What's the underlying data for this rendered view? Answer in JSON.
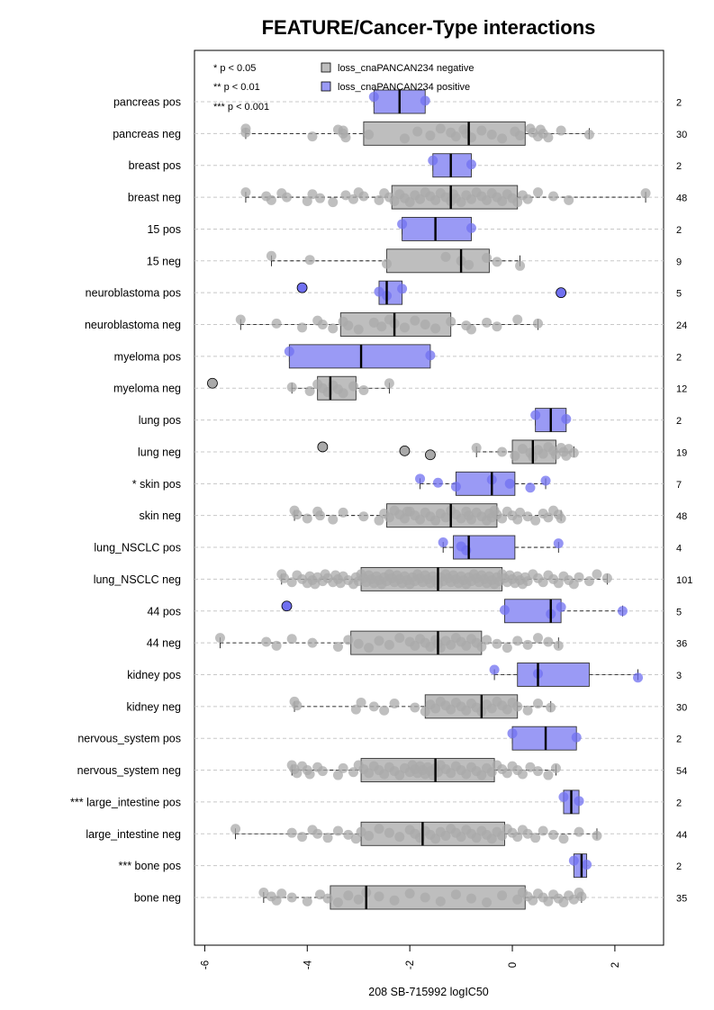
{
  "chart_data": {
    "type": "boxplot",
    "title": "FEATURE/Cancer-Type interactions",
    "xlabel": "208 SB-715992 logIC50",
    "xlim": [
      -6.2,
      2.95
    ],
    "x_ticks": [
      -6,
      -4,
      -2,
      0,
      2
    ],
    "x_tick_labels": [
      "-6",
      "-4",
      "-2",
      "0",
      "2"
    ],
    "significance_legend": [
      "* p < 0.05",
      "** p < 0.01",
      "*** p < 0.001"
    ],
    "series": [
      {
        "name": "loss_cnaPANCAN234 negative",
        "fill": "#bebebe",
        "point": "#a9a9a9"
      },
      {
        "name": "loss_cnaPANCAN234 positive",
        "fill": "#9a9af5",
        "point": "#7070f0"
      }
    ],
    "groups": [
      {
        "label": "pancreas pos",
        "n": "2",
        "series": 1,
        "q1": -2.7,
        "median": -2.2,
        "q3": -1.7,
        "lo": -2.7,
        "hi": -1.7,
        "outliers": [],
        "points": [
          -2.7,
          -1.7
        ]
      },
      {
        "label": "pancreas neg",
        "n": "30",
        "series": 0,
        "q1": -2.9,
        "median": -0.85,
        "q3": 0.25,
        "lo": -5.2,
        "hi": 1.5,
        "outliers": [],
        "points": [
          -5.2,
          -5.2,
          -3.9,
          -3.4,
          -3.3,
          -3.25,
          -3.3,
          -2.8,
          -2.1,
          -1.85,
          -1.6,
          -1.4,
          -1.2,
          -1.1,
          -0.95,
          -0.9,
          -0.8,
          -0.6,
          -0.4,
          -0.2,
          0.05,
          0.15,
          0.35,
          0.4,
          0.5,
          0.55,
          0.6,
          0.7,
          0.95,
          1.5
        ]
      },
      {
        "label": "breast pos",
        "n": "2",
        "series": 1,
        "q1": -1.55,
        "median": -1.2,
        "q3": -0.8,
        "lo": -1.55,
        "hi": -0.8,
        "outliers": [],
        "points": [
          -1.55,
          -0.8
        ]
      },
      {
        "label": "breast neg",
        "n": "48",
        "series": 0,
        "q1": -2.35,
        "median": -1.2,
        "q3": 0.1,
        "lo": -5.2,
        "hi": 2.6,
        "outliers": [],
        "points": [
          -5.2,
          -4.8,
          -4.7,
          -4.5,
          -4.4,
          -4.0,
          -3.9,
          -3.75,
          -3.5,
          -3.25,
          -3.1,
          -3.0,
          -2.9,
          -2.6,
          -2.5,
          -2.4,
          -2.3,
          -2.2,
          -2.1,
          -2.0,
          -1.9,
          -1.8,
          -1.7,
          -1.6,
          -1.5,
          -1.4,
          -1.3,
          -1.2,
          -1.15,
          -1.1,
          -1.0,
          -0.9,
          -0.8,
          -0.7,
          -0.6,
          -0.5,
          -0.4,
          -0.3,
          -0.2,
          -0.1,
          0.0,
          0.1,
          0.2,
          0.3,
          0.5,
          0.8,
          1.1,
          2.6
        ]
      },
      {
        "label": "15 pos",
        "n": "2",
        "series": 1,
        "q1": -2.15,
        "median": -1.5,
        "q3": -0.8,
        "lo": -2.15,
        "hi": -0.8,
        "outliers": [],
        "points": [
          -2.15,
          -0.8
        ]
      },
      {
        "label": "15 neg",
        "n": "9",
        "series": 0,
        "q1": -2.45,
        "median": -1.0,
        "q3": -0.45,
        "lo": -4.7,
        "hi": 0.15,
        "outliers": [],
        "points": [
          -4.7,
          -3.95,
          -2.45,
          -1.3,
          -1.0,
          -0.85,
          -0.5,
          -0.3,
          0.15
        ]
      },
      {
        "label": "neuroblastoma pos",
        "n": "5",
        "series": 1,
        "q1": -2.6,
        "median": -2.45,
        "q3": -2.15,
        "lo": -2.6,
        "hi": -2.15,
        "outliers": [
          -4.1,
          0.95
        ],
        "points": [
          -4.1,
          -2.6,
          -2.45,
          -2.15,
          0.95
        ]
      },
      {
        "label": "neuroblastoma neg",
        "n": "24",
        "series": 0,
        "q1": -3.35,
        "median": -2.3,
        "q3": -1.2,
        "lo": -5.3,
        "hi": 0.5,
        "outliers": [],
        "points": [
          -5.3,
          -4.6,
          -4.1,
          -3.8,
          -3.7,
          -3.5,
          -3.3,
          -3.2,
          -3.0,
          -2.7,
          -2.55,
          -2.4,
          -2.3,
          -2.1,
          -1.9,
          -1.7,
          -1.5,
          -1.2,
          -0.9,
          -0.8,
          -0.5,
          -0.3,
          0.1,
          0.5
        ]
      },
      {
        "label": "myeloma pos",
        "n": "2",
        "series": 1,
        "q1": -4.35,
        "median": -2.95,
        "q3": -1.6,
        "lo": -4.35,
        "hi": -1.6,
        "outliers": [],
        "points": [
          -4.35,
          -1.6
        ]
      },
      {
        "label": "myeloma neg",
        "n": "12",
        "series": 0,
        "q1": -3.8,
        "median": -3.55,
        "q3": -3.05,
        "lo": -4.3,
        "hi": -2.4,
        "outliers": [
          -5.85
        ],
        "points": [
          -5.85,
          -4.3,
          -3.95,
          -3.8,
          -3.7,
          -3.6,
          -3.5,
          -3.4,
          -3.3,
          -3.1,
          -2.9,
          -2.4
        ]
      },
      {
        "label": "lung pos",
        "n": "2",
        "series": 1,
        "q1": 0.45,
        "median": 0.75,
        "q3": 1.05,
        "lo": 0.45,
        "hi": 1.05,
        "outliers": [],
        "points": [
          0.45,
          1.05
        ]
      },
      {
        "label": "lung neg",
        "n": "19",
        "series": 0,
        "q1": 0.0,
        "median": 0.4,
        "q3": 0.85,
        "lo": -0.7,
        "hi": 1.2,
        "outliers": [
          -3.7,
          -2.1,
          -1.6
        ],
        "points": [
          -3.7,
          -2.1,
          -1.6,
          -0.7,
          -0.2,
          0.05,
          0.2,
          0.35,
          0.4,
          0.5,
          0.6,
          0.7,
          0.8,
          0.85,
          0.95,
          1.0,
          1.05,
          1.1,
          1.2
        ]
      },
      {
        "label": "* skin pos",
        "n": "7",
        "series": 1,
        "q1": -1.1,
        "median": -0.4,
        "q3": 0.05,
        "lo": -1.8,
        "hi": 0.65,
        "outliers": [],
        "points": [
          -1.8,
          -1.45,
          -1.1,
          -0.4,
          -0.05,
          0.35,
          0.65
        ]
      },
      {
        "label": "skin neg",
        "n": "48",
        "series": 0,
        "q1": -2.45,
        "median": -1.2,
        "q3": -0.3,
        "lo": -4.25,
        "hi": 0.95,
        "outliers": [],
        "points": [
          -4.25,
          -4.2,
          -4.0,
          -3.8,
          -3.75,
          -3.5,
          -3.3,
          -2.9,
          -2.6,
          -2.5,
          -2.4,
          -2.3,
          -2.2,
          -2.1,
          -2.0,
          -1.9,
          -1.8,
          -1.7,
          -1.6,
          -1.5,
          -1.4,
          -1.3,
          -1.2,
          -1.1,
          -1.0,
          -0.9,
          -0.85,
          -0.8,
          -0.7,
          -0.6,
          -0.5,
          -0.45,
          -0.4,
          -0.35,
          -0.3,
          -0.2,
          -0.1,
          0.0,
          0.1,
          0.15,
          0.3,
          0.45,
          0.6,
          0.7,
          0.8,
          0.9,
          0.95,
          -2.05
        ]
      },
      {
        "label": "lung_NSCLC pos",
        "n": "4",
        "series": 1,
        "q1": -1.15,
        "median": -0.85,
        "q3": 0.05,
        "lo": -1.35,
        "hi": 0.9,
        "outliers": [],
        "points": [
          -1.35,
          -1.0,
          -0.9,
          0.9
        ]
      },
      {
        "label": "lung_NSCLC neg",
        "n": "101",
        "series": 0,
        "q1": -2.95,
        "median": -1.45,
        "q3": -0.2,
        "lo": -4.5,
        "hi": 1.85,
        "outliers": [],
        "points": [
          -4.5,
          -4.45,
          -4.3,
          -4.2,
          -4.1,
          -4.0,
          -3.95,
          -3.9,
          -3.85,
          -3.8,
          -3.7,
          -3.65,
          -3.6,
          -3.5,
          -3.45,
          -3.4,
          -3.35,
          -3.3,
          -3.2,
          -3.1,
          -3.05,
          -3.0,
          -2.95,
          -2.9,
          -2.85,
          -2.8,
          -2.75,
          -2.7,
          -2.65,
          -2.6,
          -2.55,
          -2.5,
          -2.45,
          -2.4,
          -2.35,
          -2.3,
          -2.25,
          -2.2,
          -2.15,
          -2.1,
          -2.05,
          -2.0,
          -1.95,
          -1.9,
          -1.85,
          -1.8,
          -1.75,
          -1.7,
          -1.65,
          -1.6,
          -1.55,
          -1.5,
          -1.45,
          -1.4,
          -1.35,
          -1.3,
          -1.25,
          -1.2,
          -1.15,
          -1.1,
          -1.05,
          -1.0,
          -0.95,
          -0.9,
          -0.85,
          -0.8,
          -0.75,
          -0.7,
          -0.65,
          -0.6,
          -0.55,
          -0.5,
          -0.45,
          -0.4,
          -0.35,
          -0.3,
          -0.25,
          -0.2,
          -0.15,
          -0.1,
          -0.05,
          0.0,
          0.05,
          0.1,
          0.15,
          0.2,
          0.25,
          0.3,
          0.4,
          0.5,
          0.6,
          0.7,
          0.8,
          0.9,
          1.0,
          1.1,
          1.2,
          1.3,
          1.5,
          1.65,
          1.85
        ]
      },
      {
        "label": "44 pos",
        "n": "5",
        "series": 1,
        "q1": -0.15,
        "median": 0.75,
        "q3": 0.95,
        "lo": -0.15,
        "hi": 2.15,
        "outliers": [
          -4.4
        ],
        "points": [
          -4.4,
          -0.15,
          0.75,
          0.95,
          2.15
        ]
      },
      {
        "label": "44 neg",
        "n": "36",
        "series": 0,
        "q1": -3.15,
        "median": -1.45,
        "q3": -0.6,
        "lo": -5.7,
        "hi": 0.9,
        "outliers": [],
        "points": [
          -5.7,
          -4.8,
          -4.6,
          -4.3,
          -3.9,
          -3.4,
          -3.2,
          -3.0,
          -2.8,
          -2.6,
          -2.4,
          -2.2,
          -2.0,
          -1.9,
          -1.8,
          -1.7,
          -1.6,
          -1.5,
          -1.45,
          -1.4,
          -1.3,
          -1.2,
          -1.1,
          -1.0,
          -0.9,
          -0.8,
          -0.7,
          -0.6,
          -0.5,
          -0.3,
          -0.1,
          0.1,
          0.3,
          0.5,
          0.7,
          0.9
        ]
      },
      {
        "label": "kidney pos",
        "n": "3",
        "series": 1,
        "q1": 0.1,
        "median": 0.5,
        "q3": 1.5,
        "lo": -0.35,
        "hi": 2.45,
        "outliers": [],
        "points": [
          -0.35,
          0.5,
          2.45
        ]
      },
      {
        "label": "kidney neg",
        "n": "30",
        "series": 0,
        "q1": -1.7,
        "median": -0.6,
        "q3": 0.1,
        "lo": -4.25,
        "hi": 0.75,
        "outliers": [],
        "points": [
          -4.25,
          -4.2,
          -3.05,
          -2.95,
          -2.7,
          -2.5,
          -2.3,
          -1.9,
          -1.7,
          -1.6,
          -1.5,
          -1.4,
          -1.3,
          -1.2,
          -1.1,
          -1.0,
          -0.9,
          -0.8,
          -0.7,
          -0.6,
          -0.5,
          -0.4,
          -0.3,
          -0.2,
          -0.1,
          0.0,
          0.1,
          0.3,
          0.5,
          0.75
        ]
      },
      {
        "label": "nervous_system pos",
        "n": "2",
        "series": 1,
        "q1": 0.0,
        "median": 0.65,
        "q3": 1.25,
        "lo": 0.0,
        "hi": 1.25,
        "outliers": [],
        "points": [
          0.0,
          1.25
        ]
      },
      {
        "label": "nervous_system neg",
        "n": "54",
        "series": 0,
        "q1": -2.95,
        "median": -1.5,
        "q3": -0.35,
        "lo": -4.3,
        "hi": 0.85,
        "outliers": [],
        "points": [
          -4.3,
          -4.25,
          -4.2,
          -4.1,
          -4.0,
          -3.95,
          -3.8,
          -3.7,
          -3.4,
          -3.3,
          -3.1,
          -3.0,
          -2.9,
          -2.8,
          -2.7,
          -2.6,
          -2.5,
          -2.4,
          -2.3,
          -2.2,
          -2.1,
          -2.0,
          -1.95,
          -1.9,
          -1.85,
          -1.8,
          -1.75,
          -1.7,
          -1.65,
          -1.6,
          -1.55,
          -1.5,
          -1.45,
          -1.4,
          -1.3,
          -1.2,
          -1.1,
          -1.0,
          -0.9,
          -0.8,
          -0.7,
          -0.6,
          -0.5,
          -0.4,
          -0.3,
          -0.2,
          -0.1,
          0.0,
          0.1,
          0.2,
          0.35,
          0.5,
          0.7,
          0.85
        ]
      },
      {
        "label": "*** large_intestine pos",
        "n": "2",
        "series": 1,
        "q1": 1.0,
        "median": 1.15,
        "q3": 1.3,
        "lo": 1.0,
        "hi": 1.3,
        "outliers": [],
        "points": [
          1.0,
          1.3
        ]
      },
      {
        "label": "large_intestine neg",
        "n": "44",
        "series": 0,
        "q1": -2.95,
        "median": -1.75,
        "q3": -0.15,
        "lo": -5.4,
        "hi": 1.65,
        "outliers": [],
        "points": [
          -5.4,
          -4.3,
          -4.1,
          -3.9,
          -3.8,
          -3.6,
          -3.4,
          -3.2,
          -3.05,
          -2.95,
          -2.8,
          -2.6,
          -2.4,
          -2.2,
          -2.0,
          -1.9,
          -1.8,
          -1.7,
          -1.6,
          -1.5,
          -1.4,
          -1.3,
          -1.2,
          -1.1,
          -1.0,
          -0.9,
          -0.8,
          -0.7,
          -0.6,
          -0.5,
          -0.4,
          -0.3,
          -0.2,
          -0.1,
          0.0,
          0.1,
          0.2,
          0.3,
          0.45,
          0.6,
          0.8,
          1.0,
          1.3,
          1.65
        ]
      },
      {
        "label": "*** bone pos",
        "n": "2",
        "series": 1,
        "q1": 1.2,
        "median": 1.35,
        "q3": 1.45,
        "lo": 1.2,
        "hi": 1.45,
        "outliers": [],
        "points": [
          1.2,
          1.45
        ]
      },
      {
        "label": "bone neg",
        "n": "35",
        "series": 0,
        "q1": -3.55,
        "median": -2.85,
        "q3": 0.25,
        "lo": -4.85,
        "hi": 1.35,
        "outliers": [],
        "points": [
          -4.85,
          -4.7,
          -4.6,
          -4.5,
          -4.3,
          -4.0,
          -3.75,
          -3.6,
          -3.4,
          -3.2,
          -3.0,
          -2.85,
          -2.6,
          -2.3,
          -2.0,
          -1.7,
          -1.4,
          -1.1,
          -0.8,
          -0.5,
          -0.2,
          0.1,
          0.2,
          0.3,
          0.4,
          0.5,
          0.6,
          0.7,
          0.8,
          0.9,
          1.0,
          1.1,
          1.2,
          1.3,
          1.35
        ]
      }
    ]
  }
}
